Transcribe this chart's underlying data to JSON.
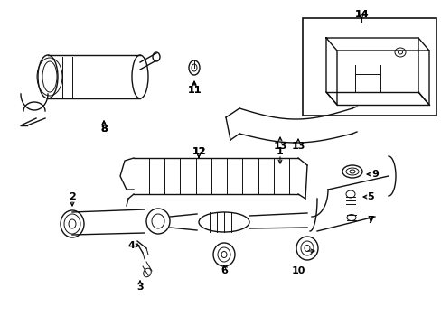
{
  "bg_color": "#ffffff",
  "line_color": "#111111",
  "label_color": "#000000",
  "fig_width": 4.89,
  "fig_height": 3.6,
  "dpi": 100
}
